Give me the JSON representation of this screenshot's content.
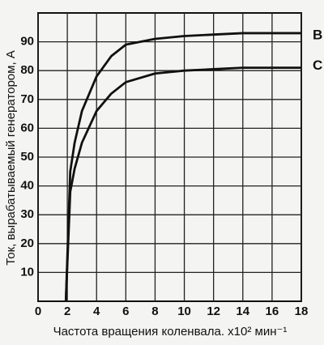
{
  "chart_data": {
    "type": "line",
    "y_label": "Ток, вырабатываемый генератором, А",
    "x_label": "Частота вращения коленвала. x10² мин⁻¹",
    "xlim": [
      0,
      18
    ],
    "xticks": [
      0,
      2,
      4,
      6,
      8,
      10,
      12,
      14,
      16,
      18
    ],
    "ylim": [
      0,
      100
    ],
    "yticks": [
      10,
      20,
      30,
      40,
      50,
      60,
      70,
      80,
      90
    ],
    "grid": true,
    "x": [
      1.9,
      2.2,
      2.5,
      3,
      4,
      5,
      6,
      8,
      10,
      12,
      14,
      16,
      18
    ],
    "series": [
      {
        "name": "B",
        "color": "#111111",
        "values": [
          0,
          45,
          55,
          66,
          78,
          85,
          89,
          91,
          92,
          92.5,
          93,
          93,
          93
        ]
      },
      {
        "name": "C",
        "color": "#111111",
        "values": [
          0,
          38,
          46,
          55,
          66,
          72,
          76,
          79,
          80,
          80.5,
          81,
          81,
          81
        ]
      }
    ]
  }
}
